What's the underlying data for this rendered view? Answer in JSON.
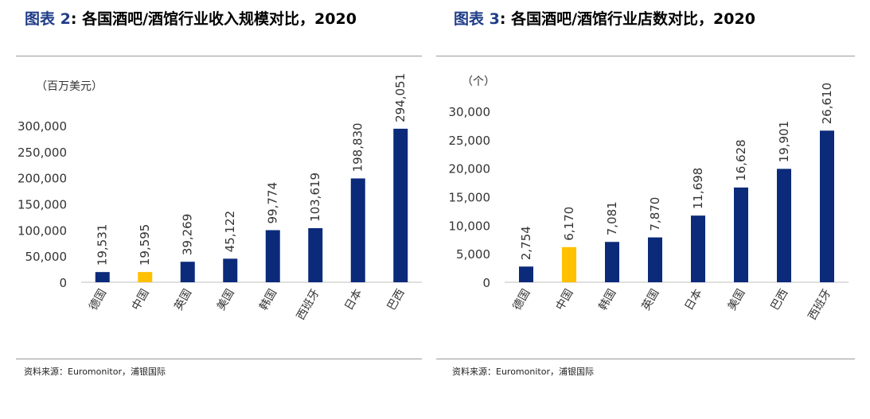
{
  "colors": {
    "bar": "#0b2a7a",
    "highlight": "#ffc000",
    "title_accent": "#1f3c88"
  },
  "charts": [
    {
      "figure_label": "图表",
      "figure_number": "2",
      "title": "各国酒吧/酒馆行业收入规模对比，2020",
      "unit": "（百万美元）",
      "source": "资料来源：Euromonitor，浦银国际",
      "ytick_labels": [
        "0",
        "50,000",
        "100,000",
        "150,000",
        "200,000",
        "250,000",
        "300,000"
      ]
    },
    {
      "figure_label": "图表",
      "figure_number": "3",
      "title": "各国酒吧/酒馆行业店数对比，2020",
      "unit": "（个）",
      "source": "资料来源：Euromonitor，浦银国际",
      "ytick_labels": [
        "0",
        "5,000",
        "10,000",
        "15,000",
        "20,000",
        "25,000",
        "30,000"
      ]
    }
  ],
  "chart_data": [
    {
      "type": "bar",
      "title": "各国酒吧/酒馆行业收入规模对比，2020",
      "ylabel": "（百万美元）",
      "categories": [
        "德国",
        "中国",
        "英国",
        "美国",
        "韩国",
        "西班牙",
        "日本",
        "巴西"
      ],
      "values": [
        19531,
        19595,
        39269,
        45122,
        99774,
        103619,
        198830,
        294051
      ],
      "data_labels": [
        "19,531",
        "19,595",
        "39,269",
        "45,122",
        "99,774",
        "103,619",
        "198,830",
        "294,051"
      ],
      "highlight_category": "中国",
      "ylim": [
        0,
        300000
      ],
      "yticks": [
        0,
        50000,
        100000,
        150000,
        200000,
        250000,
        300000
      ],
      "grid": false
    },
    {
      "type": "bar",
      "title": "各国酒吧/酒馆行业店数对比，2020",
      "ylabel": "（个）",
      "categories": [
        "德国",
        "中国",
        "韩国",
        "英国",
        "日本",
        "美国",
        "巴西",
        "西班牙"
      ],
      "values": [
        2754,
        6170,
        7081,
        7870,
        11698,
        16628,
        19901,
        26610
      ],
      "data_labels": [
        "2,754",
        "6,170",
        "7,081",
        "7,870",
        "11,698",
        "16,628",
        "19,901",
        "26,610"
      ],
      "highlight_category": "中国",
      "ylim": [
        0,
        30000
      ],
      "yticks": [
        0,
        5000,
        10000,
        15000,
        20000,
        25000,
        30000
      ],
      "grid": false
    }
  ]
}
